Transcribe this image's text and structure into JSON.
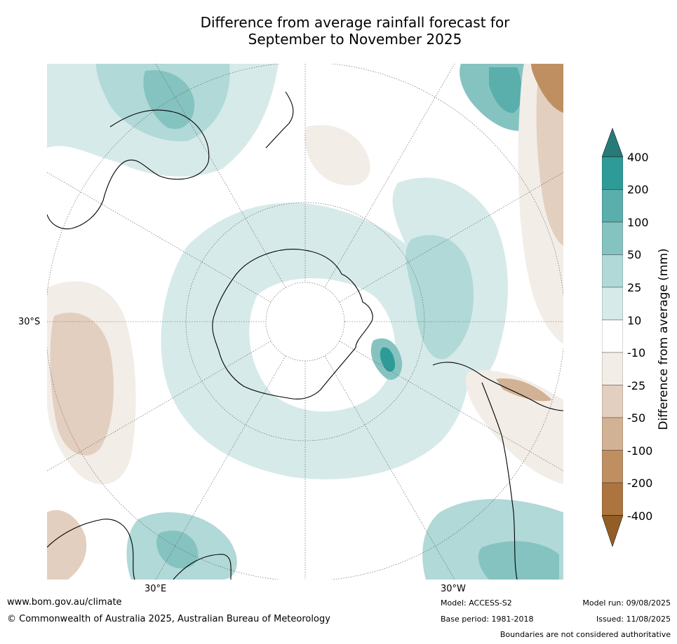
{
  "title_line1": "Difference from average rainfall forecast for",
  "title_line2": "September to November 2025",
  "map": {
    "lat_label": "30°S",
    "lon_labels": [
      "30°E",
      "30°W"
    ]
  },
  "colorbar": {
    "title": "Difference from average (mm)",
    "ticks": [
      "400",
      "200",
      "100",
      "50",
      "25",
      "10",
      "-10",
      "-25",
      "-50",
      "-100",
      "-200",
      "-400"
    ],
    "colors": {
      "over": "#267a78",
      "400_200": "#2f9b99",
      "200_100": "#5aaeac",
      "100_50": "#85c3c1",
      "50_25": "#b0d9d8",
      "25_10": "#d6eae9",
      "10_-10": "#ffffff",
      "-10_-25": "#f2ede7",
      "-25_-50": "#e3cfbf",
      "-50_-100": "#d2b295",
      "-100_-200": "#bf8f62",
      "-200_-400": "#ac7540",
      "under": "#935e26"
    }
  },
  "footer": {
    "url": "www.bom.gov.au/climate",
    "copyright": "© Commonwealth of Australia 2025, Australian Bureau of Meteorology",
    "model": "Model: ACCESS-S2",
    "base_period": "Base period: 1981-2018",
    "model_run": "Model run: 09/08/2025",
    "issued": "Issued: 11/08/2025",
    "disclaimer": "Boundaries are not considered authoritative"
  }
}
